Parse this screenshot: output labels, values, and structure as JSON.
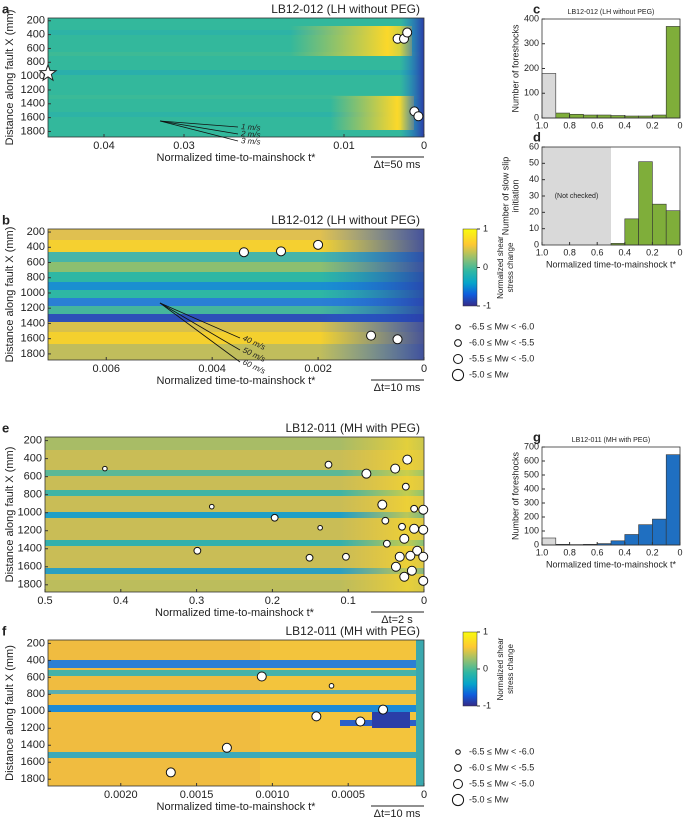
{
  "chart_data": [
    {
      "type": "heatmap",
      "panel": "a",
      "title": "LB12-012 (LH without PEG)",
      "x_label": "Normalized time-to-mainshock t*",
      "y_label": "Distance along fault X (mm)",
      "xlim": [
        0.047,
        0
      ],
      "xticks": [
        0.04,
        0.03,
        0.01,
        0
      ],
      "ylim": [
        1880,
        160
      ],
      "yticks": [
        200,
        400,
        600,
        800,
        1000,
        1200,
        1400,
        1600,
        1800
      ],
      "scale_bar": "Δt=50 ms",
      "hypocenter": 960,
      "annotations": [
        "1 m/s",
        "2 m/s",
        "3 m/s"
      ],
      "events": {
        "t": [
          0.0033,
          0.0025,
          0.0021,
          0.0012,
          0.0007
        ],
        "x_mm": [
          460,
          460,
          370,
          1510,
          1580
        ],
        "mw": [
          -5.3,
          -5.3,
          -5.3,
          -5.3,
          -5.3
        ]
      }
    },
    {
      "type": "heatmap",
      "panel": "b",
      "title": "LB12-012 (LH without PEG)",
      "x_label": "Normalized time-to-mainshock t*",
      "y_label": "Distance along fault X (mm)",
      "xlim": [
        0.0071,
        0
      ],
      "xticks": [
        0.006,
        0.004,
        0.002,
        0
      ],
      "ylim": [
        1880,
        160
      ],
      "yticks": [
        200,
        400,
        600,
        800,
        1000,
        1200,
        1400,
        1600,
        1800
      ],
      "scale_bar": "Δt=10 ms",
      "annotations": [
        "40 m/s",
        "50 m/s",
        "60 m/s"
      ],
      "colorbar": {
        "label": [
          "Normalized shear",
          "stress change"
        ],
        "ticks": [
          1,
          0,
          -1
        ]
      },
      "size_legend": [
        {
          "label": "-6.5 ≤ Mw < -6.0",
          "min": -6.5
        },
        {
          "label": "-6.0 ≤ Mw < -5.5",
          "min": -6.0
        },
        {
          "label": "-5.5 ≤ Mw < -5.0",
          "min": -5.5
        },
        {
          "label": "-5.0 ≤ Mw",
          "min": -5.0
        }
      ],
      "events": {
        "t": [
          0.0034,
          0.0027,
          0.002,
          0.001,
          0.0005
        ],
        "x_mm": [
          465,
          453,
          368,
          1560,
          1608
        ],
        "mw": [
          -5.3,
          -5.3,
          -5.3,
          -5.3,
          -5.3
        ]
      }
    },
    {
      "type": "histogram",
      "panel": "c",
      "title": "LB12-012 (LH without PEG)",
      "y_label": "Number of foreshocks",
      "bins": [
        1,
        0.9,
        0.8,
        0.7,
        0.6,
        0.5,
        0.4,
        0.3,
        0.2,
        0.1,
        0
      ],
      "counts": [
        180,
        20,
        15,
        12,
        12,
        10,
        8,
        8,
        12,
        370
      ],
      "colors": [
        "#d9d9d9",
        "#7fae3a",
        "#7fae3a",
        "#7fae3a",
        "#7fae3a",
        "#7fae3a",
        "#7fae3a",
        "#7fae3a",
        "#7fae3a",
        "#7fae3a"
      ],
      "xlim": [
        1,
        0
      ],
      "xticks": [
        {
          "value": 1,
          "label": "1.0"
        },
        0.8,
        0.6,
        0.4,
        0.2,
        0
      ],
      "ylim": [
        0,
        400
      ],
      "yticks": [
        0,
        100,
        200,
        300,
        400
      ]
    },
    {
      "type": "histogram",
      "panel": "d",
      "y_label": [
        "Number of slow slip",
        "initiation"
      ],
      "x_label": "Normalized time-to-mainshock t*",
      "bins": [
        0.5,
        0.4,
        0.3,
        0.2,
        0.1,
        0
      ],
      "counts": [
        1,
        16,
        51,
        25,
        21
      ],
      "colors": [
        "#7fae3a",
        "#7fae3a",
        "#7fae3a",
        "#7fae3a",
        "#7fae3a"
      ],
      "shaded_region": [
        1,
        0.5
      ],
      "shaded_label": "(Not checked)",
      "xlim": [
        1,
        0
      ],
      "xticks": [
        {
          "value": 1,
          "label": "1.0"
        },
        0.8,
        0.6,
        0.4,
        0.2,
        0
      ],
      "ylim": [
        0,
        60
      ],
      "yticks": [
        0,
        10,
        20,
        30,
        40,
        50,
        60
      ]
    },
    {
      "type": "heatmap",
      "panel": "e",
      "title": "LB12-011 (MH with PEG)",
      "x_label": "Normalized time-to-mainshock t*",
      "y_label": "Distance along fault X (mm)",
      "xlim": [
        0.5,
        0
      ],
      "xticks": [
        0.5,
        0.4,
        0.3,
        0.2,
        0.1,
        0
      ],
      "ylim": [
        1880,
        160
      ],
      "yticks": [
        200,
        400,
        600,
        800,
        1000,
        1200,
        1400,
        1600,
        1800
      ],
      "scale_bar": "Δt=2 s",
      "events": {
        "t": [
          0.421,
          0.28,
          0.197,
          0.126,
          0.137,
          0.299,
          0.151,
          0.103,
          0.076,
          0.055,
          0.038,
          0.022,
          0.024,
          0.013,
          0.001,
          0.029,
          0.013,
          0.001,
          0.026,
          0.032,
          0.009,
          0.001,
          0.037,
          0.016,
          0.026,
          0.001,
          0.049,
          0.051,
          0.018
        ],
        "x_mm": [
          511,
          933,
          1056,
          467,
          1167,
          1422,
          1500,
          1489,
          567,
          911,
          511,
          411,
          711,
          956,
          967,
          1156,
          1178,
          1189,
          1289,
          1489,
          1422,
          1489,
          1600,
          1644,
          1711,
          1756,
          1344,
          1089,
          1478
        ],
        "mw": [
          -6.2,
          -6.2,
          -5.8,
          -5.8,
          -6.2,
          -5.8,
          -5.8,
          -5.8,
          -5.3,
          -5.3,
          -5.3,
          -5.3,
          -5.8,
          -5.8,
          -5.3,
          -5.8,
          -5.3,
          -5.3,
          -5.3,
          -5.3,
          -5.3,
          -5.3,
          -5.3,
          -5.3,
          -5.3,
          -5.3,
          -5.8,
          -5.8,
          -5.3
        ]
      }
    },
    {
      "type": "heatmap",
      "panel": "f",
      "title": "LB12-011 (MH with PEG)",
      "x_label": "Normalized time-to-mainshock t*",
      "y_label": "Distance along fault X (mm)",
      "xlim": [
        0.00248,
        0
      ],
      "xticks": [
        {
          "value": 0.002,
          "label": "0.0020"
        },
        {
          "value": 0.0015,
          "label": "0.0015"
        },
        {
          "value": 0.001,
          "label": "0.0010"
        },
        {
          "value": 0.0005,
          "label": "0.0005"
        },
        0
      ],
      "ylim": [
        1880,
        160
      ],
      "yticks": [
        200,
        400,
        600,
        800,
        1000,
        1200,
        1400,
        1600,
        1800
      ],
      "scale_bar": "Δt=10 ms",
      "colorbar": {
        "label": [
          "Normalized shear",
          "stress change"
        ],
        "ticks": [
          1,
          0,
          -1
        ]
      },
      "size_legend": [
        {
          "label": "-6.5 ≤ Mw < -6.0",
          "min": -6.5
        },
        {
          "label": "-6.0 ≤ Mw < -5.5",
          "min": -6.0
        },
        {
          "label": "-5.5 ≤ Mw < -5.0",
          "min": -5.5
        },
        {
          "label": "-5.0 ≤ Mw",
          "min": -5.0
        }
      ],
      "events": {
        "t": [
          0.00107,
          0.00061,
          0.00027,
          0.00071,
          0.00042,
          0.0013,
          0.00167
        ],
        "x_mm": [
          590,
          700,
          980,
          1060,
          1120,
          1430,
          1720
        ],
        "mw": [
          -5.3,
          -6.2,
          -5.3,
          -5.3,
          -5.3,
          -5.3,
          -5.3
        ]
      }
    },
    {
      "type": "histogram",
      "panel": "g",
      "title": "LB12-011 (MH with PEG)",
      "y_label": "Number of foreshocks",
      "x_label": "Normalized time-to-mainshock t*",
      "bins": [
        1,
        0.9,
        0.8,
        0.7,
        0.6,
        0.5,
        0.4,
        0.3,
        0.2,
        0.1,
        0
      ],
      "counts": [
        50,
        5,
        3,
        5,
        10,
        30,
        75,
        145,
        185,
        645
      ],
      "colors": [
        "#d9d9d9",
        "#1f6fc1",
        "#1f6fc1",
        "#1f6fc1",
        "#1f6fc1",
        "#1f6fc1",
        "#1f6fc1",
        "#1f6fc1",
        "#1f6fc1",
        "#1f6fc1"
      ],
      "xlim": [
        1,
        0
      ],
      "xticks": [
        {
          "value": 1,
          "label": "1.0"
        },
        0.8,
        0.6,
        0.4,
        0.2,
        0
      ],
      "ylim": [
        0,
        700
      ],
      "yticks": [
        0,
        100,
        200,
        300,
        400,
        500,
        600,
        700
      ]
    }
  ]
}
